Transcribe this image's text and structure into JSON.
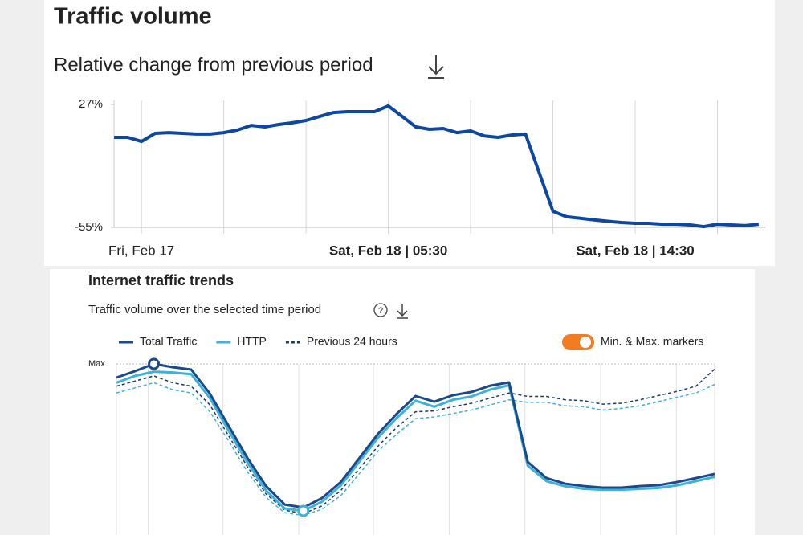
{
  "chart_data": [
    {
      "type": "line",
      "title": "Traffic volume",
      "subtitle": "Relative change from previous period",
      "color": "#0d47a1",
      "values": [
        5,
        5,
        2.3,
        7.7,
        8.2,
        7.7,
        7.2,
        7.2,
        8.2,
        9.9,
        13,
        12,
        13.6,
        14.7,
        16.3,
        19,
        21.6,
        22.2,
        22.2,
        22.2,
        26,
        19,
        12,
        10.4,
        10.9,
        8.2,
        9.3,
        6,
        5,
        6.6,
        7.2,
        -18.6,
        -44.3,
        -48,
        -49,
        -50,
        -51,
        -51.8,
        -52.3,
        -52.3,
        -52.9,
        -52.9,
        -53.4,
        -54.5,
        -52.9,
        -53.4,
        -53.9,
        -52.9
      ],
      "xlim": [
        0,
        47.5
      ],
      "xticks": [
        {
          "value": 2,
          "label": "Fri, Feb 17"
        },
        {
          "value": 8,
          "label": null
        },
        {
          "value": 14,
          "label": null
        },
        {
          "value": 20,
          "label": "Sat, Feb 18 | 05:30"
        },
        {
          "value": 26,
          "label": null
        },
        {
          "value": 32,
          "label": null
        },
        {
          "value": 38,
          "label": "Sat, Feb 18 | 14:30"
        },
        {
          "value": 44,
          "label": null
        }
      ],
      "ylim": [
        -55,
        27
      ],
      "yticks": [
        {
          "value": 27,
          "label": "27%"
        },
        {
          "value": -55,
          "label": "-55%"
        }
      ],
      "grid": true
    },
    {
      "type": "line",
      "title": "Internet traffic trends",
      "subtitle": "Traffic volume over the selected time period",
      "toggle_label": "Min. & Max. markers",
      "markers": true,
      "series": [
        {
          "name": "Total Traffic",
          "color": "#1a4a8c",
          "dash": false,
          "values": [
            92,
            95.8,
            100,
            98.1,
            96.7,
            82.6,
            63.8,
            45.1,
            28.6,
            17.8,
            16,
            21.6,
            31,
            45.1,
            59.2,
            70.9,
            81.2,
            77.9,
            81.7,
            83.6,
            87.3,
            89.2,
            42.7,
            33.3,
            30,
            28.6,
            27.7,
            27.7,
            28.6,
            29.1,
            31,
            33.3,
            35.7
          ]
        },
        {
          "name": "HTTP",
          "color": "#3fb0d8",
          "dash": false,
          "values": [
            89,
            93,
            95.5,
            95,
            94,
            80,
            61,
            42.5,
            26,
            15.5,
            14.1,
            19.5,
            29,
            43,
            57,
            68.5,
            78.5,
            75,
            79,
            81,
            85,
            87.5,
            40.5,
            31.5,
            28.5,
            27,
            26.5,
            26.5,
            27,
            27.5,
            29,
            31.5,
            34
          ]
        },
        {
          "name": "Previous 24 hours",
          "color": "#1a3a66",
          "http_color": "#3fb0d8",
          "dash": true,
          "values": [
            87,
            90,
            93,
            89,
            87,
            76,
            58,
            40,
            24,
            14.5,
            12.5,
            17,
            26,
            39,
            52,
            63,
            72,
            72.5,
            75,
            77,
            80,
            83,
            81,
            81,
            79,
            78.5,
            76.5,
            77,
            79,
            81.5,
            84,
            87,
            97
          ],
          "http_values": [
            83,
            86,
            89,
            85,
            83,
            72,
            55,
            37,
            22,
            13,
            11.5,
            15,
            23,
            36,
            49,
            59,
            68,
            69,
            71,
            73,
            76,
            79,
            77.5,
            77.5,
            75.5,
            75,
            73,
            74,
            75.5,
            78,
            80.5,
            83,
            88
          ]
        }
      ],
      "xlim": [
        0,
        32
      ],
      "xticks": [
        {
          "value": 1.7,
          "label": null
        },
        {
          "value": 5.7,
          "label": null
        },
        {
          "value": 9.75,
          "label": null
        },
        {
          "value": 13.75,
          "label": null
        },
        {
          "value": 17.8,
          "label": null
        },
        {
          "value": 21.85,
          "label": null
        },
        {
          "value": 25.9,
          "label": null
        },
        {
          "value": 29.95,
          "label": null
        }
      ],
      "ylim": [
        0,
        100
      ],
      "yticks": [
        {
          "value": 100,
          "label": "Max"
        }
      ],
      "grid": true
    }
  ]
}
